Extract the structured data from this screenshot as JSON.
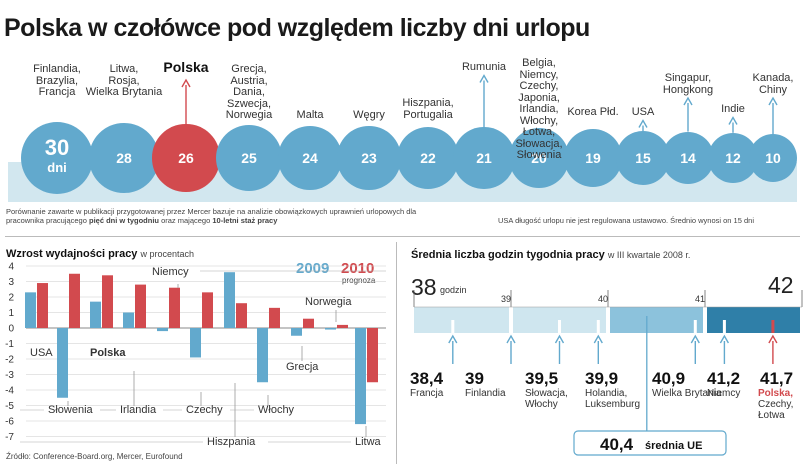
{
  "title": "Polska w czołówce pod względem liczby dni urlopu",
  "colors": {
    "blue": "#62a9cd",
    "red": "#d24a4e",
    "light_blue": "#8cc2dc",
    "pale": "#cfe6ef",
    "dark_blue": "#2f7fa8"
  },
  "chart_data": [
    {
      "type": "bar",
      "title": "Polska w czołówce pod względem liczby dni urlopu",
      "unit": "dni",
      "categories": [
        "Finlandia, Brazylia, Francja",
        "Litwa, Rosja, Wielka Brytania",
        "Polska",
        "Grecja, Austria, Dania, Szwecja, Norwegia",
        "Malta",
        "Węgry",
        "Hiszpania, Portugalia",
        "Rumunia",
        "Belgia, Niemcy, Czechy, Japonia, Irlandia, Włochy, Łotwa, Słowacja, Słowenia",
        "Korea Płd.",
        "USA",
        "Singapur, Hongkong",
        "Indie",
        "Kanada, Chiny"
      ],
      "values": [
        30,
        28,
        26,
        25,
        24,
        23,
        22,
        21,
        20,
        19,
        15,
        14,
        12,
        10
      ],
      "highlight": "Polska"
    },
    {
      "type": "bar",
      "title": "Wzrost wydajności pracy",
      "subtitle": "w procentach",
      "series": [
        {
          "name": "2009",
          "values": [
            2.3,
            -4.5,
            1.7,
            1.0,
            -0.2,
            -1.9,
            3.6,
            -3.5,
            -0.5,
            -0.1,
            -6.2
          ]
        },
        {
          "name": "2010",
          "sublabel": "prognoza",
          "values": [
            2.9,
            3.5,
            3.4,
            2.8,
            2.6,
            2.3,
            1.6,
            1.3,
            0.6,
            0.2,
            -3.5
          ]
        }
      ],
      "categories": [
        "USA",
        "Słowenia",
        "Polska",
        "Irlandia",
        "Niemcy",
        "Czechy",
        "Hiszpania",
        "Włochy",
        "Grecja",
        "Norwegia",
        "Litwa"
      ],
      "ylim": [
        -7,
        4
      ],
      "yticks": [
        4,
        3,
        2,
        1,
        0,
        -1,
        -2,
        -3,
        -4,
        -5,
        -6,
        -7
      ]
    },
    {
      "type": "range",
      "title": "Średnia liczba godzin tygodnia pracy",
      "subtitle": "w III kwartale 2008 r.",
      "xlim": [
        38,
        42
      ],
      "ticks": [
        38,
        39,
        40,
        41,
        42
      ],
      "unit": "godzin",
      "points": [
        {
          "value": "38,4",
          "x": 38.4,
          "label": "Francja"
        },
        {
          "value": "39",
          "x": 39.0,
          "label": "Finlandia"
        },
        {
          "value": "39,5",
          "x": 39.5,
          "label": "Słowacja, Włochy"
        },
        {
          "value": "39,9",
          "x": 39.9,
          "label": "Holandia, Luksemburg"
        },
        {
          "value": "40,9",
          "x": 40.9,
          "label": "Wielka Brytania"
        },
        {
          "value": "41,2",
          "x": 41.2,
          "label": "Niemcy"
        },
        {
          "value": "41,7",
          "x": 41.7,
          "label": "Polska, Czechy, Łotwa",
          "label_highlight": "Polska,",
          "label_rest": "Czechy, Łotwa"
        }
      ],
      "average": {
        "value": "40,4",
        "x": 40.4,
        "label": "średnia UE"
      }
    }
  ],
  "circles": {
    "unit_label": "dni",
    "note_text": "Porównanie zawarte w publikacji przygotowanej przez Mercer bazuje na analizie obowiązkowych uprawnień urlopowych dla pracownika pracującego",
    "note_bold1": "pięć dni w tygodniu",
    "note_mid": "oraz mającego",
    "note_bold2": "10-letni staż pracy",
    "usa_note": "USA długość urlopu nie jest regulowana ustawowo. Średnio wynosi on 15 dni"
  },
  "bars": {
    "title": "Wzrost wydajności pracy",
    "subtitle": "w procentach",
    "legend_2009": "2009",
    "legend_2010": "2010",
    "legend_prognoza": "prognoza"
  },
  "hours": {
    "title": "Średnia liczba godzin tygodnia pracy",
    "subtitle": "w III kwartale 2008 r.",
    "left_value": "38",
    "left_unit": "godzin",
    "right_value": "42",
    "tick39": "39",
    "tick40": "40",
    "tick41": "41"
  },
  "source": "Źródło: Conference-Board.org, Mercer, Eurofound"
}
